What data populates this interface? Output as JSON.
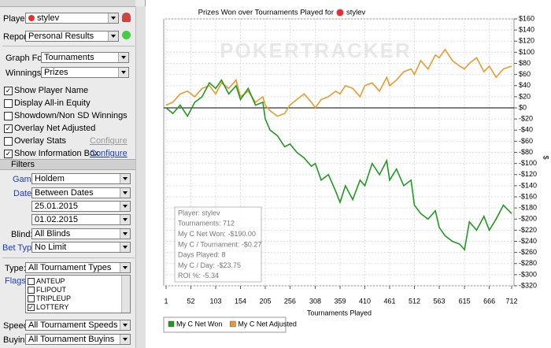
{
  "panel": {
    "player_label": "Player:",
    "player": "stylev",
    "report_label": "Report:",
    "report": "Personal Results",
    "graph_for_label": "Graph For:",
    "graph_for": "Tournaments",
    "winnings_label": "Winnings in:",
    "winnings": "Prizes",
    "options": [
      {
        "label": "Show Player Name",
        "checked": true
      },
      {
        "label": "Display All-in Equity",
        "checked": false
      },
      {
        "label": "Showdown/Non SD Winnings",
        "checked": false
      },
      {
        "label": "Overlay Net Adjusted",
        "checked": true
      },
      {
        "label": "Overlay Stats",
        "checked": false,
        "link": "Configure"
      },
      {
        "label": "Show Information Box",
        "checked": true,
        "link": "Configure"
      }
    ],
    "filters_title": "Filters",
    "game_label": "Game:",
    "game": "Holdem",
    "date_label": "Date:",
    "date": "Between Dates",
    "date_from": "25.01.2015",
    "date_to": "01.02.2015",
    "blind_label": "Blind:",
    "blind": "All Blinds",
    "bet_type_label": "Bet Type:",
    "bet_type": "No Limit",
    "type_label": "Type:",
    "type": "All Tournament Types",
    "flags_label": "Flags:",
    "flags": [
      {
        "label": "ANTEUP",
        "checked": false
      },
      {
        "label": "FLIPOUT",
        "checked": false
      },
      {
        "label": "TRIPLEUP",
        "checked": false
      },
      {
        "label": "LOTTERY",
        "checked": true
      }
    ],
    "speed_label": "Speed:",
    "speed": "All Tournament Speeds",
    "buyin_label": "Buyin:",
    "buyin": "All Tournament Buyins"
  },
  "chart_data": {
    "type": "line",
    "title": "Prizes Won over Tournaments Played for",
    "title_player": "stylev",
    "watermark": "POKERTRACKER",
    "x_label": "Tournaments Played",
    "y_label": "$",
    "x": [
      1,
      15,
      30,
      45,
      60,
      75,
      90,
      103,
      115,
      130,
      145,
      154,
      170,
      185,
      200,
      205,
      215,
      230,
      245,
      256,
      270,
      285,
      300,
      308,
      320,
      335,
      350,
      359,
      370,
      385,
      400,
      410,
      425,
      440,
      455,
      461,
      475,
      490,
      505,
      512,
      525,
      540,
      555,
      563,
      575,
      590,
      605,
      615,
      625,
      640,
      655,
      666,
      680,
      695,
      712
    ],
    "series": [
      {
        "name": "My C Net Won",
        "color": "#1f9a1f",
        "values": [
          0,
          -10,
          5,
          -15,
          10,
          20,
          45,
          35,
          50,
          25,
          40,
          15,
          35,
          5,
          10,
          -20,
          -40,
          -50,
          -70,
          -65,
          -80,
          -90,
          -105,
          -100,
          -130,
          -120,
          -150,
          -170,
          -140,
          -165,
          -130,
          -140,
          -100,
          -120,
          -95,
          -130,
          -110,
          -140,
          -130,
          -175,
          -190,
          -200,
          -185,
          -215,
          -230,
          -240,
          -245,
          -255,
          -205,
          -220,
          -195,
          -220,
          -200,
          -175,
          -190
        ]
      },
      {
        "name": "My C Net Adjusted",
        "color": "#e89a2c",
        "values": [
          5,
          10,
          25,
          30,
          20,
          35,
          40,
          25,
          45,
          35,
          50,
          20,
          30,
          10,
          20,
          5,
          -5,
          -15,
          -10,
          5,
          15,
          25,
          10,
          0,
          15,
          20,
          30,
          25,
          40,
          35,
          20,
          40,
          45,
          30,
          55,
          40,
          50,
          65,
          70,
          60,
          85,
          70,
          95,
          90,
          105,
          85,
          75,
          70,
          80,
          90,
          65,
          75,
          55,
          70,
          75
        ]
      }
    ],
    "xlim": [
      1,
      712
    ],
    "xticks": [
      1,
      52,
      103,
      154,
      205,
      256,
      308,
      359,
      410,
      461,
      512,
      563,
      615,
      666,
      712
    ],
    "ylim": [
      -320,
      160
    ],
    "yticks": [
      {
        "value": 160,
        "label": "$160"
      },
      {
        "value": 140,
        "label": "$140"
      },
      {
        "value": 120,
        "label": "$120"
      },
      {
        "value": 100,
        "label": "$100"
      },
      {
        "value": 80,
        "label": "$80"
      },
      {
        "value": 60,
        "label": "$60"
      },
      {
        "value": 40,
        "label": "$40"
      },
      {
        "value": 20,
        "label": "$20"
      },
      {
        "value": 0,
        "label": "$0"
      },
      {
        "value": -20,
        "label": "-$20"
      },
      {
        "value": -40,
        "label": "-$40"
      },
      {
        "value": -60,
        "label": "-$60"
      },
      {
        "value": -80,
        "label": "-$80"
      },
      {
        "value": -100,
        "label": "-$100"
      },
      {
        "value": -120,
        "label": "-$120"
      },
      {
        "value": -140,
        "label": "-$140"
      },
      {
        "value": -160,
        "label": "-$160"
      },
      {
        "value": -180,
        "label": "-$180"
      },
      {
        "value": -200,
        "label": "-$200"
      },
      {
        "value": -220,
        "label": "-$220"
      },
      {
        "value": -240,
        "label": "-$240"
      },
      {
        "value": -260,
        "label": "-$260"
      },
      {
        "value": -280,
        "label": "-$280"
      },
      {
        "value": -300,
        "label": "-$300"
      },
      {
        "value": -320,
        "label": "-$320"
      }
    ],
    "grid": true,
    "info_box": [
      "Player: stylev",
      "Tournaments: 712",
      "My C Net Won: -$190.00",
      "My C / Tournament: -$0.27",
      "Days Played: 8",
      "My C / Day: -$23.75",
      "ROI %: -5.34"
    ]
  }
}
